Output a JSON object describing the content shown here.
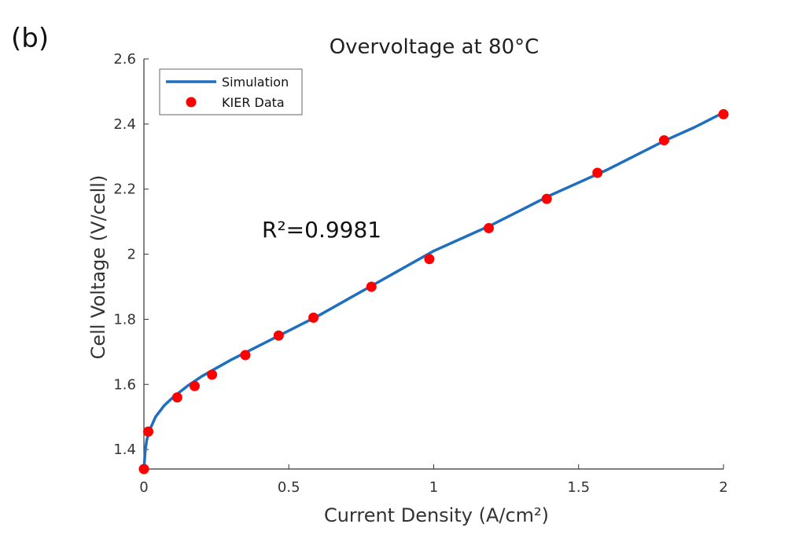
{
  "panel_label": "(b)",
  "chart_data": {
    "type": "line",
    "title": "Overvoltage at 80°C",
    "xlabel": "Current Density (A/cm²)",
    "ylabel": "Cell Voltage (V/cell)",
    "xlim": [
      0,
      2
    ],
    "ylim": [
      1.34,
      2.6
    ],
    "xticks": [
      0,
      0.5,
      1,
      1.5,
      2
    ],
    "xtick_labels": [
      "0",
      "0.5",
      "1",
      "1.5",
      "2"
    ],
    "yticks": [
      1.4,
      1.6,
      1.8,
      2.0,
      2.2,
      2.4,
      2.6
    ],
    "ytick_labels": [
      "1.4",
      "1.6",
      "1.8",
      "2",
      "2.2",
      "2.4",
      "2.6"
    ],
    "grid": false,
    "legend_position": "top-left",
    "annotation": "R²=0.9981",
    "series": [
      {
        "name": "Simulation",
        "style": "line",
        "color": "#1f6fbf",
        "x": [
          0,
          0.005,
          0.01,
          0.02,
          0.04,
          0.07,
          0.1,
          0.15,
          0.2,
          0.25,
          0.3,
          0.4,
          0.5,
          0.6,
          0.7,
          0.8,
          0.9,
          1.0,
          1.1,
          1.2,
          1.3,
          1.4,
          1.5,
          1.6,
          1.7,
          1.8,
          1.9,
          2.0
        ],
        "y": [
          1.34,
          1.4,
          1.43,
          1.46,
          1.5,
          1.535,
          1.56,
          1.595,
          1.625,
          1.65,
          1.675,
          1.72,
          1.765,
          1.81,
          1.86,
          1.91,
          1.96,
          2.01,
          2.05,
          2.09,
          2.135,
          2.18,
          2.22,
          2.26,
          2.305,
          2.35,
          2.39,
          2.435
        ]
      },
      {
        "name": "KIER Data",
        "style": "scatter",
        "color": "#ff0000",
        "x": [
          0.0,
          0.015,
          0.115,
          0.175,
          0.235,
          0.35,
          0.465,
          0.585,
          0.785,
          0.985,
          1.19,
          1.39,
          1.565,
          1.795,
          2.0
        ],
        "y": [
          1.34,
          1.455,
          1.56,
          1.595,
          1.63,
          1.69,
          1.75,
          1.805,
          1.9,
          1.985,
          2.08,
          2.17,
          2.25,
          2.35,
          2.43
        ]
      }
    ]
  }
}
